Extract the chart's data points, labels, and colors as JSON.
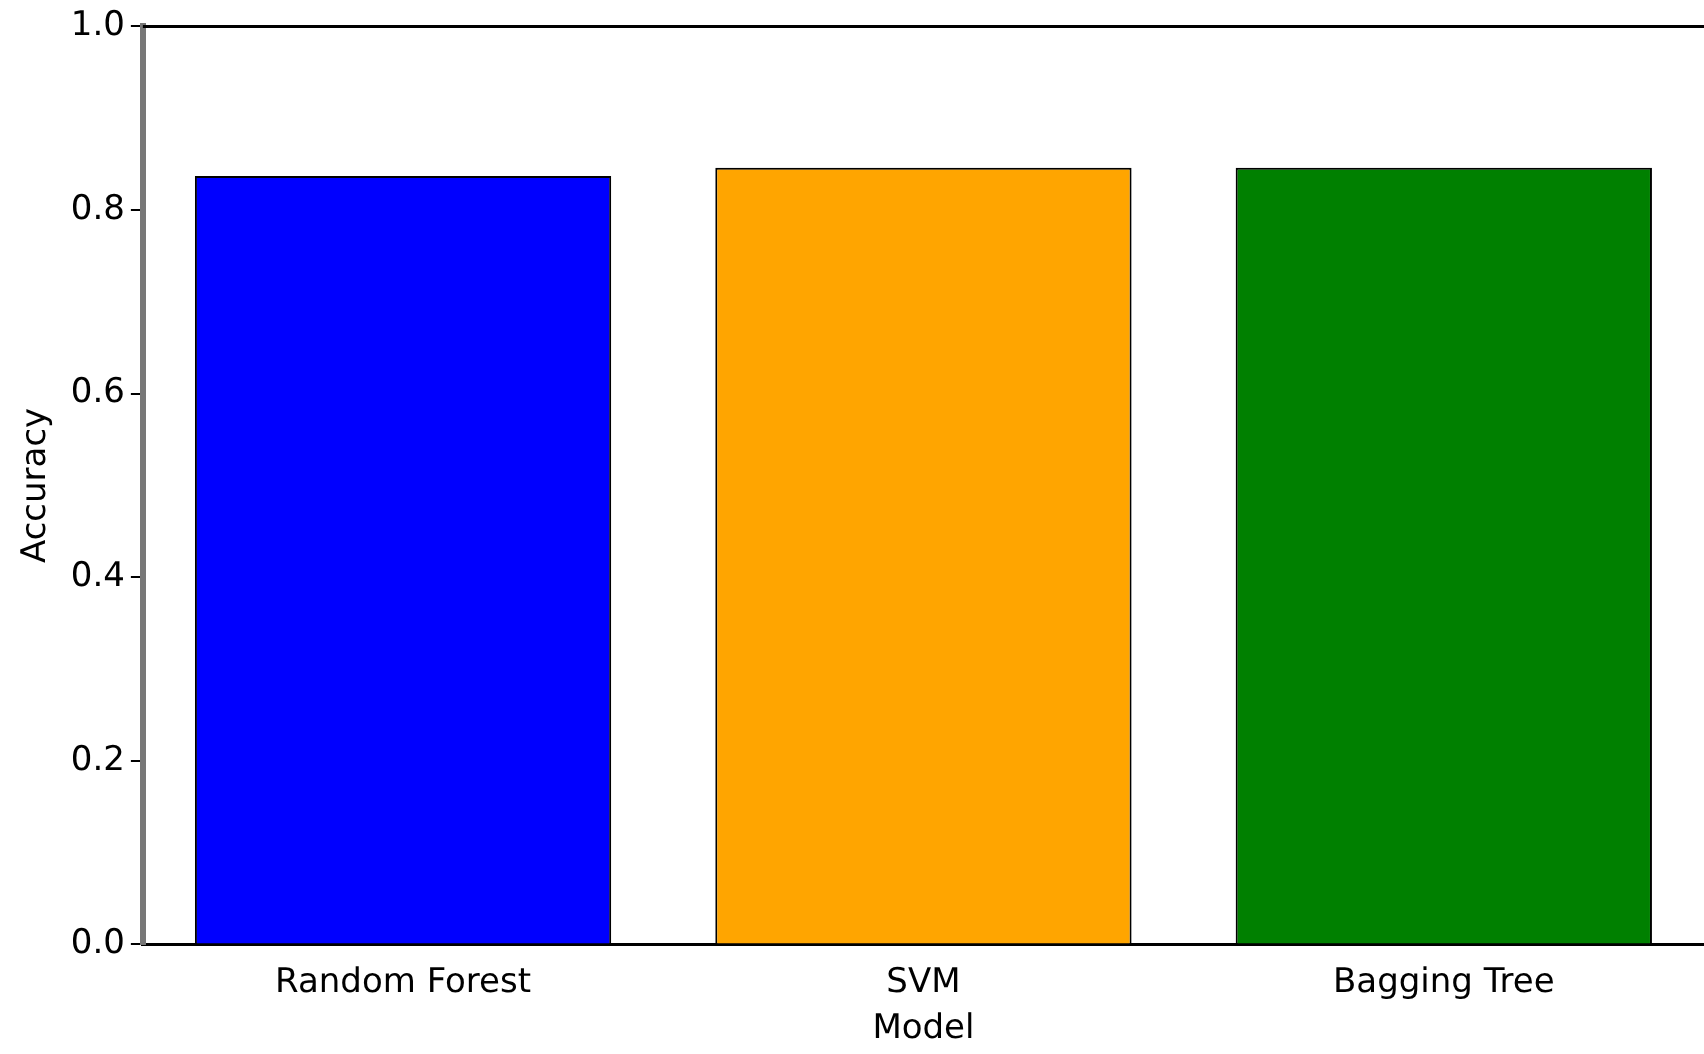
{
  "chart_data": {
    "type": "bar",
    "xlabel": "Model",
    "ylabel": "Accuracy",
    "categories": [
      "Random Forest",
      "SVM",
      "Bagging Tree"
    ],
    "values": [
      0.837,
      0.846,
      0.846
    ],
    "colors": [
      "#0000ff",
      "#ffa500",
      "#008000"
    ],
    "ylim": [
      0,
      1
    ],
    "yticks": [
      {
        "value": 0,
        "label": "0.0"
      },
      0.2,
      0.4,
      0.6,
      0.8,
      {
        "value": 1,
        "label": "1.0"
      }
    ],
    "grid": false,
    "legend": false
  }
}
